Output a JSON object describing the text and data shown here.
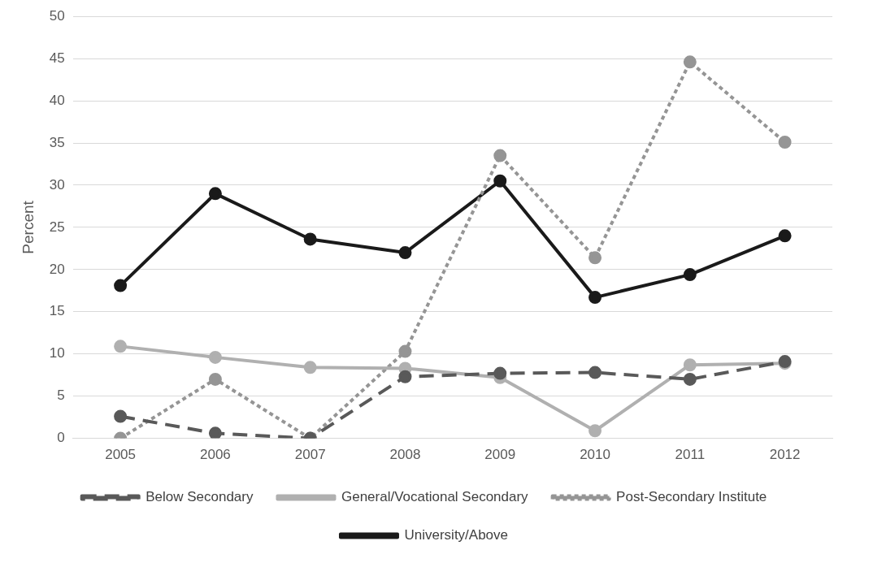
{
  "chart_data": {
    "type": "line",
    "ylabel": "Percent",
    "categories": [
      "2005",
      "2006",
      "2007",
      "2008",
      "2009",
      "2010",
      "2011",
      "2012"
    ],
    "ylim": [
      0,
      50
    ],
    "yticks": [
      0,
      5,
      10,
      15,
      20,
      25,
      30,
      35,
      40,
      45,
      50
    ],
    "grid": "y",
    "legend": "bottom",
    "marker": "circle",
    "series": [
      {
        "name": "Below Secondary",
        "color": "#595959",
        "line_style": "dashed",
        "values": [
          2.6,
          0.6,
          0,
          7.3,
          7.7,
          7.8,
          7.0,
          9.1
        ]
      },
      {
        "name": "General/Vocational Secondary",
        "color": "#b0b0b0",
        "line_style": "solid",
        "values": [
          10.9,
          9.6,
          8.4,
          8.3,
          7.2,
          0.9,
          8.7,
          8.9
        ]
      },
      {
        "name": "Post-Secondary Institute",
        "color": "#959595",
        "line_style": "dotted",
        "values": [
          0,
          7.0,
          0,
          10.3,
          33.5,
          21.4,
          44.6,
          35.1
        ]
      },
      {
        "name": "University/Above",
        "color": "#1a1a1a",
        "line_style": "solid",
        "values": [
          18.1,
          29.0,
          23.6,
          22.0,
          30.5,
          16.7,
          19.4,
          24.0
        ]
      }
    ]
  }
}
